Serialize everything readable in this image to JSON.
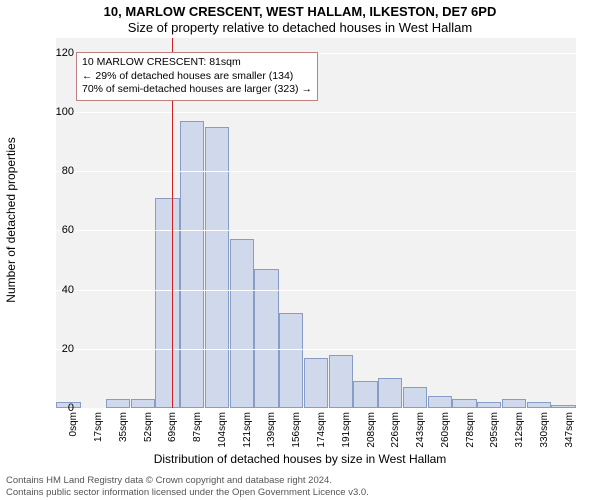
{
  "titles": {
    "line1": "10, MARLOW CRESCENT, WEST HALLAM, ILKESTON, DE7 6PD",
    "line2": "Size of property relative to detached houses in West Hallam"
  },
  "yaxis": {
    "label": "Number of detached properties",
    "max": 125,
    "ticks": [
      0,
      20,
      40,
      60,
      80,
      100,
      120
    ],
    "label_fontsize": 12
  },
  "xaxis": {
    "label": "Distribution of detached houses by size in West Hallam",
    "label_fontsize": 12,
    "ticks": [
      "0sqm",
      "17sqm",
      "35sqm",
      "52sqm",
      "69sqm",
      "87sqm",
      "104sqm",
      "121sqm",
      "139sqm",
      "156sqm",
      "174sqm",
      "191sqm",
      "208sqm",
      "226sqm",
      "243sqm",
      "260sqm",
      "278sqm",
      "295sqm",
      "312sqm",
      "330sqm",
      "347sqm"
    ]
  },
  "bars": {
    "values": [
      2,
      0,
      3,
      3,
      71,
      97,
      95,
      57,
      47,
      32,
      17,
      18,
      9,
      10,
      7,
      4,
      3,
      2,
      3,
      2,
      1
    ],
    "fill_color": "#d0d9ec",
    "edge_color": "#889dc6"
  },
  "reference_line": {
    "value_sqm": 81,
    "color": "#d02020"
  },
  "callout": {
    "line1": "10 MARLOW CRESCENT: 81sqm",
    "line2": "← 29% of detached houses are smaller (134)",
    "line3": "70% of semi-detached houses are larger (323) →",
    "border_color": "#c08080",
    "background": "#ffffff"
  },
  "footer": {
    "line1": "Contains HM Land Registry data © Crown copyright and database right 2024.",
    "line2": "Contains public sector information licensed under the Open Government Licence v3.0."
  },
  "chart_style": {
    "plot_background": "#f2f2f2",
    "grid_color": "#ffffff",
    "page_background": "#ffffff",
    "tick_fontsize": 11,
    "xtick_fontsize": 10
  }
}
